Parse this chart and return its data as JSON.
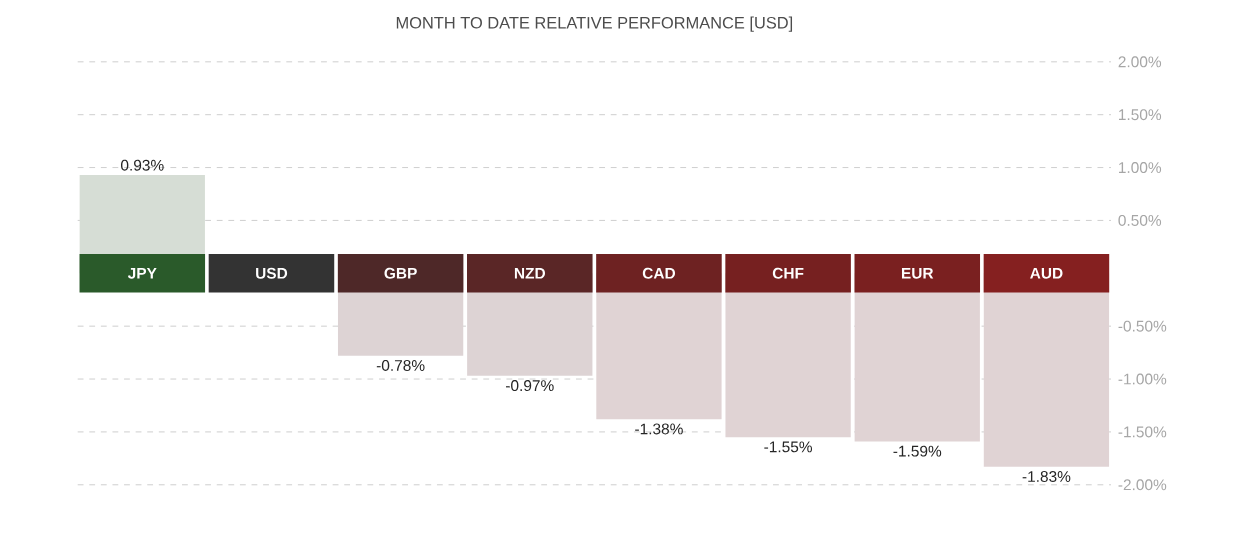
{
  "chart_data": {
    "type": "bar",
    "title": "MONTH TO DATE RELATIVE PERFORMANCE  [USD]",
    "categories": [
      "JPY",
      "USD",
      "GBP",
      "NZD",
      "CAD",
      "CHF",
      "EUR",
      "AUD"
    ],
    "values": [
      0.93,
      0,
      -0.78,
      -0.97,
      -1.38,
      -1.55,
      -1.59,
      -1.83
    ],
    "colors": [
      "#d6ddd5",
      "#dcd5d5",
      "#ddd3d4",
      "#ddd3d4",
      "#e0d3d4",
      "#e0d3d4",
      "#e0d3d4",
      "#e0d3d4"
    ],
    "value_labels": [
      "0.93%",
      null,
      "-0.78%",
      "-0.97%",
      "-1.38%",
      "-1.55%",
      "-1.59%",
      "-1.83%"
    ],
    "ylim": [
      -2,
      2
    ],
    "yticks": [
      {
        "value": 2,
        "label": "2.00%"
      },
      {
        "value": 1.5,
        "label": "1.50%"
      },
      {
        "value": 1,
        "label": "1.00%"
      },
      {
        "value": 0.5,
        "label": "0.50%"
      },
      {
        "value": -0.5,
        "label": "-0.50%"
      },
      {
        "value": -1,
        "label": "-1.00%"
      },
      {
        "value": -1.5,
        "label": "-1.50%"
      },
      {
        "value": -2,
        "label": "-2.00%"
      }
    ],
    "grid": "y"
  }
}
